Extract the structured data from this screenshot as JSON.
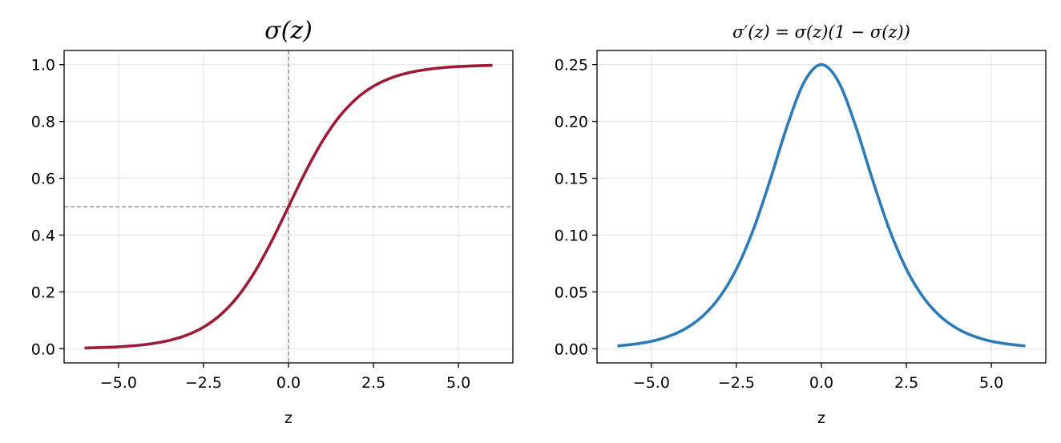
{
  "chart_data": [
    {
      "type": "line",
      "title": "σ(z)",
      "xlabel": "z",
      "ylabel": "",
      "xlim": [
        -6.6,
        6.6
      ],
      "ylim": [
        -0.05,
        1.05
      ],
      "xticks": [
        -5.0,
        -2.5,
        0.0,
        2.5,
        5.0
      ],
      "xtick_labels": [
        "−5.0",
        "−2.5",
        "0.0",
        "2.5",
        "5.0"
      ],
      "yticks": [
        0.0,
        0.2,
        0.4,
        0.6,
        0.8,
        1.0
      ],
      "ytick_labels": [
        "0.0",
        "0.2",
        "0.4",
        "0.6",
        "0.8",
        "1.0"
      ],
      "grid": true,
      "reference_lines": [
        {
          "orientation": "horizontal",
          "value": 0.5,
          "style": "dashed",
          "color": "#808080"
        },
        {
          "orientation": "vertical",
          "value": 0.0,
          "style": "dashed",
          "color": "#808080"
        }
      ],
      "series": [
        {
          "color": "#9b1c36",
          "x": [
            -6,
            -5.5,
            -5,
            -4.5,
            -4,
            -3.5,
            -3,
            -2.5,
            -2,
            -1.5,
            -1,
            -0.5,
            0,
            0.5,
            1,
            1.5,
            2,
            2.5,
            3,
            3.5,
            4,
            4.5,
            5,
            5.5,
            6
          ],
          "y": [
            0.0025,
            0.0041,
            0.0067,
            0.011,
            0.018,
            0.0293,
            0.0474,
            0.0759,
            0.1192,
            0.1824,
            0.2689,
            0.3775,
            0.5,
            0.6225,
            0.7311,
            0.8176,
            0.8808,
            0.9241,
            0.9526,
            0.9707,
            0.982,
            0.989,
            0.9933,
            0.9959,
            0.9975
          ]
        }
      ]
    },
    {
      "type": "line",
      "title": "σ′(z) = σ(z)(1 − σ(z))",
      "xlabel": "z",
      "ylabel": "",
      "xlim": [
        -6.6,
        6.6
      ],
      "ylim": [
        -0.0124,
        0.2624
      ],
      "xticks": [
        -5.0,
        -2.5,
        0.0,
        2.5,
        5.0
      ],
      "xtick_labels": [
        "−5.0",
        "−2.5",
        "0.0",
        "2.5",
        "5.0"
      ],
      "yticks": [
        0.0,
        0.05,
        0.1,
        0.15,
        0.2,
        0.25
      ],
      "ytick_labels": [
        "0.00",
        "0.05",
        "0.10",
        "0.15",
        "0.20",
        "0.25"
      ],
      "grid": true,
      "reference_lines": [],
      "series": [
        {
          "color": "#2b7bb9",
          "x": [
            -6,
            -5.5,
            -5,
            -4.5,
            -4,
            -3.5,
            -3,
            -2.5,
            -2,
            -1.5,
            -1,
            -0.5,
            0,
            0.5,
            1,
            1.5,
            2,
            2.5,
            3,
            3.5,
            4,
            4.5,
            5,
            5.5,
            6
          ],
          "y": [
            0.0025,
            0.0041,
            0.0066,
            0.0109,
            0.0177,
            0.0285,
            0.0452,
            0.0701,
            0.105,
            0.1491,
            0.1966,
            0.235,
            0.25,
            0.235,
            0.1966,
            0.1491,
            0.105,
            0.0701,
            0.0452,
            0.0285,
            0.0177,
            0.0109,
            0.0066,
            0.0041,
            0.0025
          ]
        }
      ]
    }
  ]
}
